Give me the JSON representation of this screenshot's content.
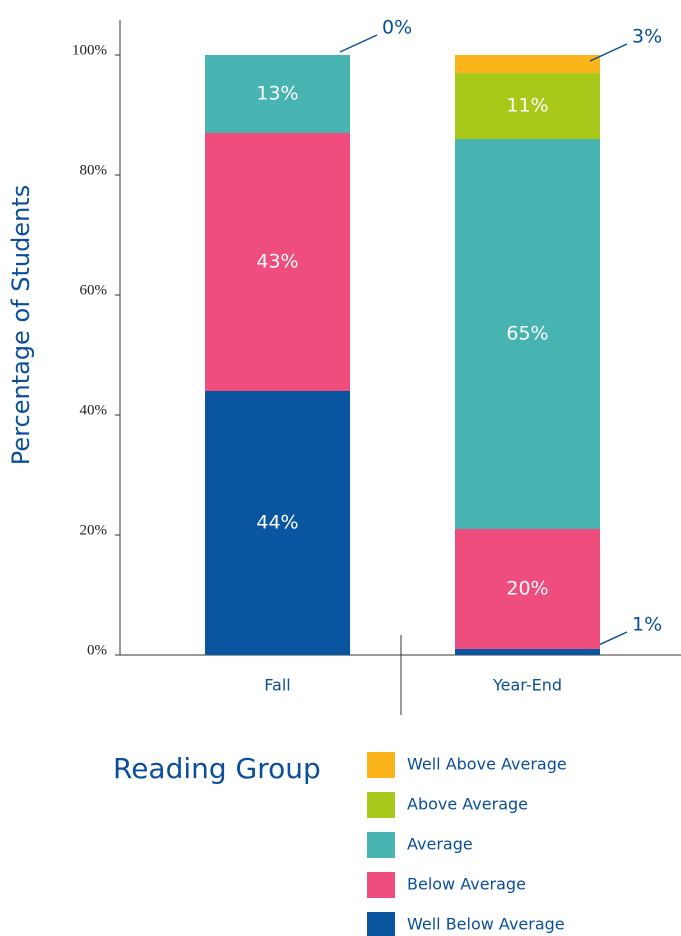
{
  "chart_data": {
    "type": "stacked_bar",
    "y_axis_label": "Percentage of Students",
    "legend_title": "Reading Group",
    "categories": [
      "Fall",
      "Year-End"
    ],
    "ylim": [
      0,
      100
    ],
    "yticks": [
      {
        "value": 0,
        "label": "0%"
      },
      {
        "value": 20,
        "label": "20%"
      },
      {
        "value": 40,
        "label": "40%"
      },
      {
        "value": 60,
        "label": "60%"
      },
      {
        "value": 80,
        "label": "80%"
      },
      {
        "value": 100,
        "label": "100%"
      }
    ],
    "series": [
      {
        "name": "Well Below Average",
        "color": "#0a55a0",
        "values": [
          44,
          1
        ],
        "value_labels": [
          "44%",
          "1%"
        ]
      },
      {
        "name": "Below Average",
        "color": "#ee4d7e",
        "values": [
          43,
          20
        ],
        "value_labels": [
          "43%",
          "20%"
        ]
      },
      {
        "name": "Average",
        "color": "#48b4b2",
        "values": [
          13,
          65
        ],
        "value_labels": [
          "13%",
          "65%"
        ]
      },
      {
        "name": "Above Average",
        "color": "#a8c81a",
        "values": [
          0,
          11
        ],
        "value_labels": [
          "0%",
          "11%"
        ]
      },
      {
        "name": "Well Above Average",
        "color": "#fbb41a",
        "values": [
          0,
          3
        ],
        "value_labels": [
          null,
          "3%"
        ]
      }
    ]
  }
}
